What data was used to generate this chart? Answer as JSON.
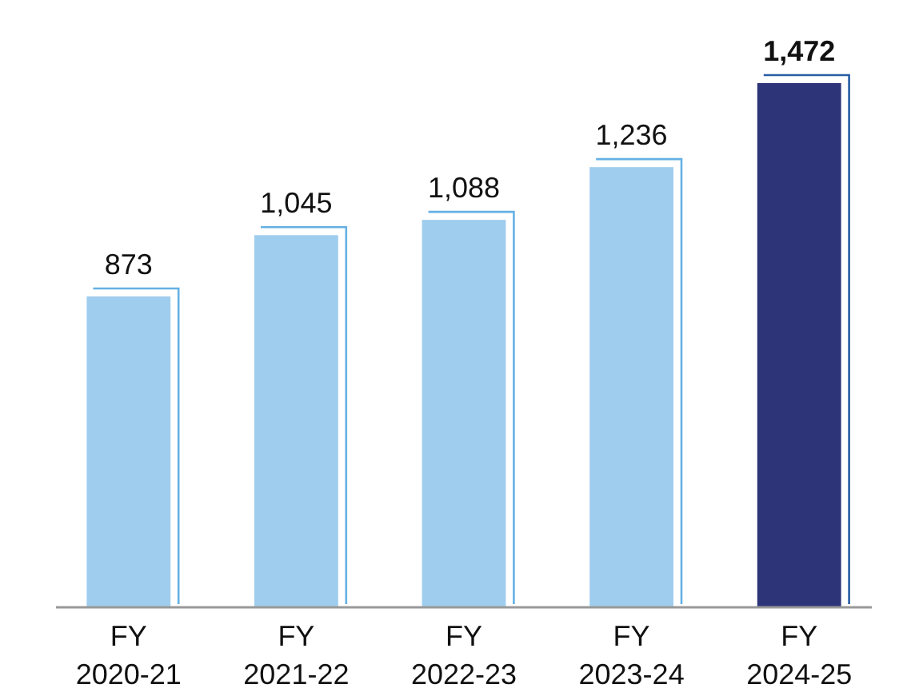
{
  "chart_data": {
    "type": "bar",
    "categories": [
      "FY 2020-21",
      "FY 2021-22",
      "FY 2022-23",
      "FY 2023-24",
      "FY 2024-25"
    ],
    "values": [
      873,
      1045,
      1088,
      1236,
      1472
    ],
    "colors": [
      "#9fcdee",
      "#9fcdee",
      "#9fcdee",
      "#9fcdee",
      "#2e3478"
    ],
    "value_labels": [
      "873",
      "1,045",
      "1,088",
      "1,236",
      "1,472"
    ]
  }
}
